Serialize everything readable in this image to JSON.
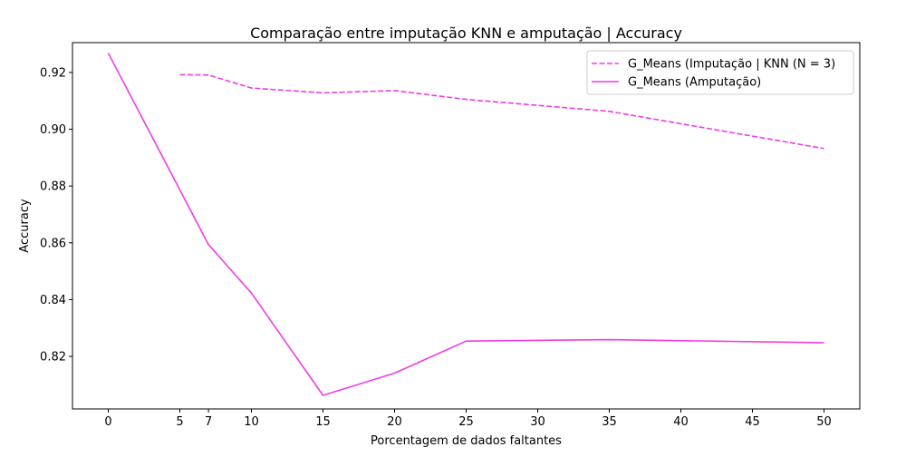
{
  "chart_data": {
    "type": "line",
    "title": "Comparação entre imputação KNN e amputação | Accuracy",
    "xlabel": "Porcentagem de dados faltantes",
    "ylabel": "Accuracy",
    "x_ticks": [
      0,
      5,
      7,
      10,
      15,
      20,
      25,
      30,
      35,
      40,
      45,
      50
    ],
    "y_ticks": [
      0.82,
      0.84,
      0.86,
      0.88,
      0.9,
      0.92
    ],
    "xlim": [
      -2.5,
      52.5
    ],
    "ylim": [
      0.8015,
      0.9305
    ],
    "grid": false,
    "legend_position": "top-right",
    "series": [
      {
        "name": "G_Means (Imputação | KNN (N = 3)",
        "style": "dashed",
        "color": "#f03ce6",
        "x": [
          5,
          7,
          10,
          15,
          20,
          25,
          35,
          50
        ],
        "y": [
          0.9192,
          0.9191,
          0.9145,
          0.9128,
          0.9136,
          0.9105,
          0.9063,
          0.8932
        ]
      },
      {
        "name": "G_Means (Amputação)",
        "style": "solid",
        "color": "#f03ce6",
        "x": [
          0,
          7,
          10,
          15,
          20,
          25,
          35,
          50
        ],
        "y": [
          0.9268,
          0.8594,
          0.8423,
          0.8063,
          0.8141,
          0.8254,
          0.8259,
          0.8248
        ]
      }
    ]
  }
}
